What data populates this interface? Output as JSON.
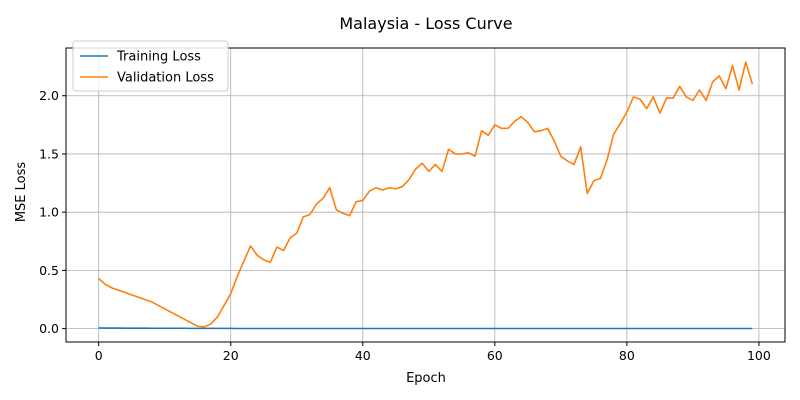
{
  "chart_data": {
    "type": "line",
    "title": "Malaysia - Loss Curve",
    "xlabel": "Epoch",
    "ylabel": "MSE Loss",
    "xlim": [
      -4.95,
      103.95
    ],
    "ylim": [
      -0.115,
      2.41
    ],
    "xticks": [
      0,
      20,
      40,
      60,
      80,
      100
    ],
    "xtick_labels": [
      "0",
      "20",
      "40",
      "60",
      "80",
      "100"
    ],
    "yticks": [
      0.0,
      0.5,
      1.0,
      1.5,
      2.0
    ],
    "ytick_labels": [
      "0.0",
      "0.5",
      "1.0",
      "1.5",
      "2.0"
    ],
    "grid": true,
    "legend_position": "top-left",
    "x": [
      0,
      1,
      2,
      3,
      4,
      5,
      6,
      7,
      8,
      9,
      10,
      11,
      12,
      13,
      14,
      15,
      16,
      17,
      18,
      19,
      20,
      21,
      22,
      23,
      24,
      25,
      26,
      27,
      28,
      29,
      30,
      31,
      32,
      33,
      34,
      35,
      36,
      37,
      38,
      39,
      40,
      41,
      42,
      43,
      44,
      45,
      46,
      47,
      48,
      49,
      50,
      51,
      52,
      53,
      54,
      55,
      56,
      57,
      58,
      59,
      60,
      61,
      62,
      63,
      64,
      65,
      66,
      67,
      68,
      69,
      70,
      71,
      72,
      73,
      74,
      75,
      76,
      77,
      78,
      79,
      80,
      81,
      82,
      83,
      84,
      85,
      86,
      87,
      88,
      89,
      90,
      91,
      92,
      93,
      94,
      95,
      96,
      97,
      98,
      99
    ],
    "series": [
      {
        "name": "Training Loss",
        "color": "#1f77b4",
        "values": [
          0.006,
          0.005,
          0.005,
          0.005,
          0.004,
          0.004,
          0.004,
          0.004,
          0.003,
          0.003,
          0.003,
          0.003,
          0.003,
          0.003,
          0.002,
          0.002,
          0.002,
          0.002,
          0.002,
          0.002,
          0.002,
          0.001,
          0.001,
          0.001,
          0.001,
          0.001,
          0.001,
          0.001,
          0.001,
          0.001,
          0.001,
          0.001,
          0.001,
          0.001,
          0.001,
          0.001,
          0.001,
          0.001,
          0.001,
          0.001,
          0.001,
          0.001,
          0.001,
          0.001,
          0.001,
          0.001,
          0.001,
          0.001,
          0.001,
          0.001,
          0.001,
          0.001,
          0.001,
          0.001,
          0.001,
          0.001,
          0.001,
          0.001,
          0.001,
          0.001,
          0.001,
          0.001,
          0.001,
          0.001,
          0.001,
          0.001,
          0.001,
          0.001,
          0.001,
          0.001,
          0.001,
          0.001,
          0.001,
          0.001,
          0.001,
          0.001,
          0.001,
          0.001,
          0.001,
          0.001,
          0.001,
          0.001,
          0.001,
          0.001,
          0.001,
          0.001,
          0.001,
          0.001,
          0.001,
          0.001,
          0.001,
          0.001,
          0.001,
          0.001,
          0.001,
          0.001,
          0.001,
          0.001,
          0.001,
          0.001
        ]
      },
      {
        "name": "Validation Loss",
        "color": "#ff7f0e",
        "values": [
          0.43,
          0.38,
          0.35,
          0.33,
          0.31,
          0.29,
          0.27,
          0.25,
          0.23,
          0.2,
          0.17,
          0.14,
          0.11,
          0.08,
          0.05,
          0.02,
          0.015,
          0.04,
          0.1,
          0.2,
          0.3,
          0.45,
          0.58,
          0.71,
          0.63,
          0.59,
          0.57,
          0.7,
          0.67,
          0.78,
          0.82,
          0.96,
          0.98,
          1.07,
          1.12,
          1.21,
          1.02,
          0.99,
          0.97,
          1.09,
          1.1,
          1.18,
          1.21,
          1.19,
          1.21,
          1.2,
          1.22,
          1.28,
          1.37,
          1.42,
          1.35,
          1.41,
          1.35,
          1.54,
          1.5,
          1.5,
          1.51,
          1.48,
          1.7,
          1.66,
          1.75,
          1.72,
          1.72,
          1.78,
          1.82,
          1.77,
          1.69,
          1.7,
          1.72,
          1.61,
          1.48,
          1.44,
          1.41,
          1.56,
          1.16,
          1.27,
          1.29,
          1.45,
          1.67,
          1.76,
          1.86,
          1.99,
          1.97,
          1.89,
          1.99,
          1.85,
          1.98,
          1.98,
          2.08,
          1.99,
          1.96,
          2.05,
          1.96,
          2.12,
          2.17,
          2.06,
          2.26,
          2.05,
          2.29,
          2.1
        ]
      }
    ]
  }
}
